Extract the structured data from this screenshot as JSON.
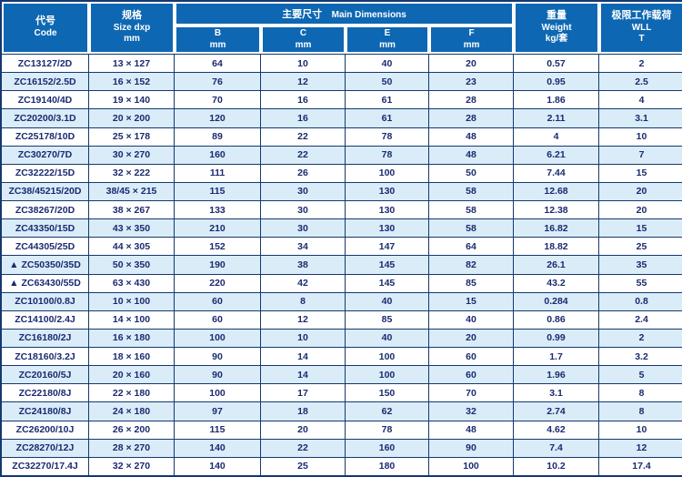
{
  "table": {
    "header": {
      "code": {
        "zh": "代号",
        "en": "Code"
      },
      "size": {
        "zh": "规格",
        "en": "Size dxp",
        "unit": "mm"
      },
      "main_dimensions": {
        "zh": "主要尺寸",
        "en": "Main Dimensions"
      },
      "dimension_columns": [
        {
          "label": "B",
          "unit": "mm"
        },
        {
          "label": "C",
          "unit": "mm"
        },
        {
          "label": "E",
          "unit": "mm"
        },
        {
          "label": "F",
          "unit": "mm"
        }
      ],
      "weight": {
        "zh": "重量",
        "en": "Weight",
        "unit": "kg/套"
      },
      "wll": {
        "zh": "极限工作载荷",
        "en": "WLL",
        "unit": "T"
      }
    },
    "rows": [
      {
        "code": "ZC13127/2D",
        "size": "13 × 127",
        "B": "64",
        "C": "10",
        "E": "40",
        "F": "20",
        "weight": "0.57",
        "wll": "2"
      },
      {
        "code": "ZC16152/2.5D",
        "size": "16 × 152",
        "B": "76",
        "C": "12",
        "E": "50",
        "F": "23",
        "weight": "0.95",
        "wll": "2.5"
      },
      {
        "code": "ZC19140/4D",
        "size": "19 × 140",
        "B": "70",
        "C": "16",
        "E": "61",
        "F": "28",
        "weight": "1.86",
        "wll": "4"
      },
      {
        "code": "ZC20200/3.1D",
        "size": "20 × 200",
        "B": "120",
        "C": "16",
        "E": "61",
        "F": "28",
        "weight": "2.11",
        "wll": "3.1"
      },
      {
        "code": "ZC25178/10D",
        "size": "25 × 178",
        "B": "89",
        "C": "22",
        "E": "78",
        "F": "48",
        "weight": "4",
        "wll": "10"
      },
      {
        "code": "ZC30270/7D",
        "size": "30 × 270",
        "B": "160",
        "C": "22",
        "E": "78",
        "F": "48",
        "weight": "6.21",
        "wll": "7"
      },
      {
        "code": "ZC32222/15D",
        "size": "32 × 222",
        "B": "111",
        "C": "26",
        "E": "100",
        "F": "50",
        "weight": "7.44",
        "wll": "15"
      },
      {
        "code": "ZC38/45215/20D",
        "size": "38/45 × 215",
        "B": "115",
        "C": "30",
        "E": "130",
        "F": "58",
        "weight": "12.68",
        "wll": "20"
      },
      {
        "code": "ZC38267/20D",
        "size": "38 × 267",
        "B": "133",
        "C": "30",
        "E": "130",
        "F": "58",
        "weight": "12.38",
        "wll": "20"
      },
      {
        "code": "ZC43350/15D",
        "size": "43 × 350",
        "B": "210",
        "C": "30",
        "E": "130",
        "F": "58",
        "weight": "16.82",
        "wll": "15"
      },
      {
        "code": "ZC44305/25D",
        "size": "44 × 305",
        "B": "152",
        "C": "34",
        "E": "147",
        "F": "64",
        "weight": "18.82",
        "wll": "25"
      },
      {
        "code": "▲ ZC50350/35D",
        "size": "50 × 350",
        "B": "190",
        "C": "38",
        "E": "145",
        "F": "82",
        "weight": "26.1",
        "wll": "35"
      },
      {
        "code": "▲ ZC63430/55D",
        "size": "63 × 430",
        "B": "220",
        "C": "42",
        "E": "145",
        "F": "85",
        "weight": "43.2",
        "wll": "55"
      },
      {
        "code": "ZC10100/0.8J",
        "size": "10 × 100",
        "B": "60",
        "C": "8",
        "E": "40",
        "F": "15",
        "weight": "0.284",
        "wll": "0.8"
      },
      {
        "code": "ZC14100/2.4J",
        "size": "14 × 100",
        "B": "60",
        "C": "12",
        "E": "85",
        "F": "40",
        "weight": "0.86",
        "wll": "2.4"
      },
      {
        "code": "ZC16180/2J",
        "size": "16 × 180",
        "B": "100",
        "C": "10",
        "E": "40",
        "F": "20",
        "weight": "0.99",
        "wll": "2"
      },
      {
        "code": "ZC18160/3.2J",
        "size": "18 × 160",
        "B": "90",
        "C": "14",
        "E": "100",
        "F": "60",
        "weight": "1.7",
        "wll": "3.2"
      },
      {
        "code": "ZC20160/5J",
        "size": "20 × 160",
        "B": "90",
        "C": "14",
        "E": "100",
        "F": "60",
        "weight": "1.96",
        "wll": "5"
      },
      {
        "code": "ZC22180/8J",
        "size": "22 × 180",
        "B": "100",
        "C": "17",
        "E": "150",
        "F": "70",
        "weight": "3.1",
        "wll": "8"
      },
      {
        "code": "ZC24180/8J",
        "size": "24 × 180",
        "B": "97",
        "C": "18",
        "E": "62",
        "F": "32",
        "weight": "2.74",
        "wll": "8"
      },
      {
        "code": "ZC26200/10J",
        "size": "26 × 200",
        "B": "115",
        "C": "20",
        "E": "78",
        "F": "48",
        "weight": "4.62",
        "wll": "10"
      },
      {
        "code": "ZC28270/12J",
        "size": "28 × 270",
        "B": "140",
        "C": "22",
        "E": "160",
        "F": "90",
        "weight": "7.4",
        "wll": "12"
      },
      {
        "code": "ZC32270/17.4J",
        "size": "32 × 270",
        "B": "140",
        "C": "25",
        "E": "180",
        "F": "100",
        "weight": "10.2",
        "wll": "17.4"
      }
    ],
    "colors": {
      "header_background": "#0e67b2",
      "header_text": "#ffffff",
      "stripe_row": "#d9ecf8",
      "border": "#16386f",
      "body_text": "#1a2a70"
    }
  }
}
